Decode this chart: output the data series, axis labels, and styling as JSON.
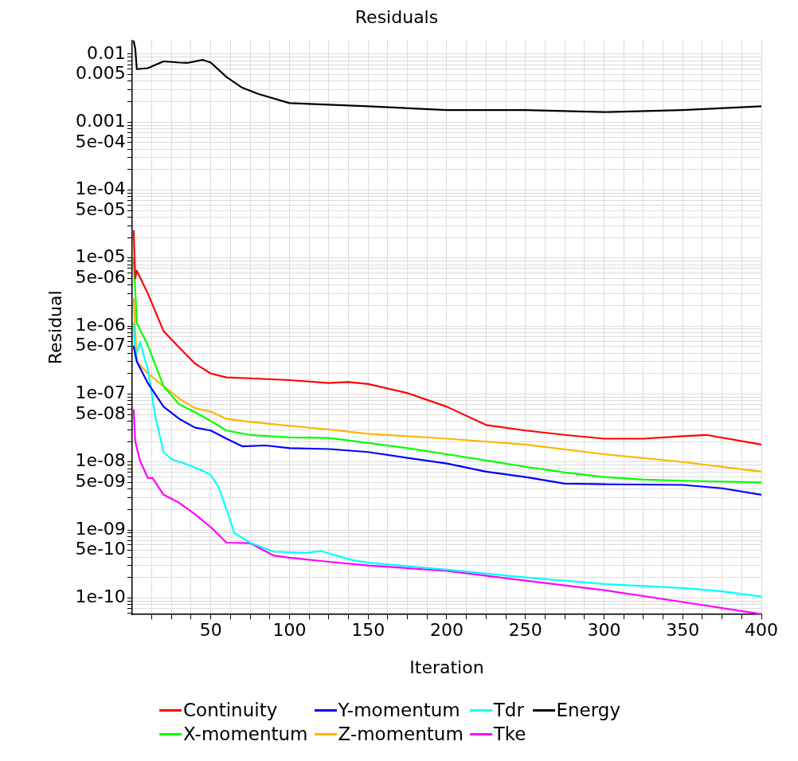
{
  "chart_data": {
    "type": "line",
    "title": "Residuals",
    "xlabel": "Iteration",
    "ylabel": "Residual",
    "log": "y",
    "grid": true,
    "legend": "bottom",
    "marker": "none",
    "line_style": "solid",
    "xlim": [
      0,
      400
    ],
    "xticks": [
      {
        "value": 12.5,
        "label": null
      },
      {
        "value": 25,
        "label": null
      },
      {
        "value": 37.5,
        "label": null
      },
      50,
      {
        "value": 62.5,
        "label": null
      },
      {
        "value": 75,
        "label": null
      },
      {
        "value": 87.5,
        "label": null
      },
      100,
      {
        "value": 112.5,
        "label": null
      },
      {
        "value": 125,
        "label": null
      },
      {
        "value": 137.5,
        "label": null
      },
      150,
      {
        "value": 162.5,
        "label": null
      },
      {
        "value": 175,
        "label": null
      },
      {
        "value": 187.5,
        "label": null
      },
      200,
      {
        "value": 212.5,
        "label": null
      },
      {
        "value": 225,
        "label": null
      },
      {
        "value": 237.5,
        "label": null
      },
      250,
      {
        "value": 262.5,
        "label": null
      },
      {
        "value": 275,
        "label": null
      },
      {
        "value": 287.5,
        "label": null
      },
      300,
      {
        "value": 312.5,
        "label": null
      },
      {
        "value": 325,
        "label": null
      },
      {
        "value": 337.5,
        "label": null
      },
      350,
      {
        "value": 362.5,
        "label": null
      },
      {
        "value": 375,
        "label": null
      },
      {
        "value": 387.5,
        "label": null
      },
      400
    ],
    "ylim": [
      5.7e-11,
      0.016
    ],
    "yticks": [
      {
        "value": 6e-11,
        "label": null
      },
      {
        "value": 7e-11,
        "label": null
      },
      {
        "value": 8e-11,
        "label": null
      },
      {
        "value": 9e-11,
        "label": null
      },
      {
        "value": 1e-10,
        "label": "1e-10"
      },
      {
        "value": 2e-10,
        "label": null
      },
      {
        "value": 3e-10,
        "label": null
      },
      {
        "value": 4e-10,
        "label": null
      },
      {
        "value": 5e-10,
        "label": "5e-10"
      },
      {
        "value": 6e-10,
        "label": null
      },
      {
        "value": 7e-10,
        "label": null
      },
      {
        "value": 8e-10,
        "label": null
      },
      {
        "value": 9e-10,
        "label": null
      },
      {
        "value": 1e-09,
        "label": "1e-09"
      },
      {
        "value": 2e-09,
        "label": null
      },
      {
        "value": 3e-09,
        "label": null
      },
      {
        "value": 4e-09,
        "label": null
      },
      {
        "value": 5e-09,
        "label": "5e-09"
      },
      {
        "value": 6e-09,
        "label": null
      },
      {
        "value": 7e-09,
        "label": null
      },
      {
        "value": 8e-09,
        "label": null
      },
      {
        "value": 9e-09,
        "label": null
      },
      {
        "value": 1e-08,
        "label": "1e-08"
      },
      {
        "value": 2e-08,
        "label": null
      },
      {
        "value": 3e-08,
        "label": null
      },
      {
        "value": 4e-08,
        "label": null
      },
      {
        "value": 5e-08,
        "label": "5e-08"
      },
      {
        "value": 6e-08,
        "label": null
      },
      {
        "value": 7e-08,
        "label": null
      },
      {
        "value": 8e-08,
        "label": null
      },
      {
        "value": 9e-08,
        "label": null
      },
      {
        "value": 1e-07,
        "label": "1e-07"
      },
      {
        "value": 2e-07,
        "label": null
      },
      {
        "value": 3e-07,
        "label": null
      },
      {
        "value": 4e-07,
        "label": null
      },
      {
        "value": 5e-07,
        "label": "5e-07"
      },
      {
        "value": 6e-07,
        "label": null
      },
      {
        "value": 7e-07,
        "label": null
      },
      {
        "value": 8e-07,
        "label": null
      },
      {
        "value": 9e-07,
        "label": null
      },
      {
        "value": 1e-06,
        "label": "1e-06"
      },
      {
        "value": 2e-06,
        "label": null
      },
      {
        "value": 3e-06,
        "label": null
      },
      {
        "value": 4e-06,
        "label": null
      },
      {
        "value": 5e-06,
        "label": "5e-06"
      },
      {
        "value": 6e-06,
        "label": null
      },
      {
        "value": 7e-06,
        "label": null
      },
      {
        "value": 8e-06,
        "label": null
      },
      {
        "value": 9e-06,
        "label": null
      },
      {
        "value": 1e-05,
        "label": "1e-05"
      },
      {
        "value": 2e-05,
        "label": null
      },
      {
        "value": 3e-05,
        "label": null
      },
      {
        "value": 4e-05,
        "label": null
      },
      {
        "value": 5e-05,
        "label": "5e-05"
      },
      {
        "value": 6e-05,
        "label": null
      },
      {
        "value": 7e-05,
        "label": null
      },
      {
        "value": 8e-05,
        "label": null
      },
      {
        "value": 9e-05,
        "label": null
      },
      {
        "value": 0.0001,
        "label": "1e-04"
      },
      {
        "value": 0.0002,
        "label": null
      },
      {
        "value": 0.0003,
        "label": null
      },
      {
        "value": 0.0004,
        "label": null
      },
      {
        "value": 0.0005,
        "label": "5e-04"
      },
      {
        "value": 0.0006,
        "label": null
      },
      {
        "value": 0.0007,
        "label": null
      },
      {
        "value": 0.0008,
        "label": null
      },
      {
        "value": 0.0009,
        "label": null
      },
      0.001,
      {
        "value": 0.002,
        "label": null
      },
      {
        "value": 0.003,
        "label": null
      },
      {
        "value": 0.004,
        "label": null
      },
      0.005,
      {
        "value": 0.006,
        "label": null
      },
      {
        "value": 0.007,
        "label": null
      },
      {
        "value": 0.008,
        "label": null
      },
      {
        "value": 0.009,
        "label": null
      },
      0.01
    ],
    "series": [
      {
        "name": "Continuity",
        "color": "#ff0000",
        "x": [
          1,
          2,
          3,
          10,
          20,
          30,
          40,
          50,
          60,
          75,
          100,
          125,
          137,
          150,
          175,
          200,
          225,
          250,
          275,
          300,
          325,
          350,
          365,
          400
        ],
        "values": [
          2.5e-05,
          5e-06,
          6.5e-06,
          3e-06,
          8.4e-07,
          4.8e-07,
          2.8e-07,
          2e-07,
          1.75e-07,
          1.7e-07,
          1.6e-07,
          1.45e-07,
          1.5e-07,
          1.4e-07,
          1.03e-07,
          6.5e-08,
          3.5e-08,
          2.9e-08,
          2.5e-08,
          2.2e-08,
          2.2e-08,
          2.4e-08,
          2.5e-08,
          1.8e-08
        ]
      },
      {
        "name": "Y-momentum",
        "color": "#0000ff",
        "x": [
          1,
          3,
          10,
          20,
          30,
          40,
          50,
          60,
          70,
          85,
          100,
          125,
          150,
          175,
          200,
          225,
          250,
          275,
          300,
          350,
          375,
          400
        ],
        "values": [
          5e-07,
          3e-07,
          1.45e-07,
          6.5e-08,
          4.3e-08,
          3.2e-08,
          2.9e-08,
          2.2e-08,
          1.7e-08,
          1.75e-08,
          1.6e-08,
          1.55e-08,
          1.4e-08,
          1.15e-08,
          9.5e-09,
          7.2e-09,
          6e-09,
          4.8e-09,
          4.7e-09,
          4.6e-09,
          4.1e-09,
          3.3e-09
        ]
      },
      {
        "name": "Tdr",
        "color": "#00ffff",
        "x": [
          1,
          2,
          5,
          10,
          15,
          20,
          25,
          35,
          45,
          50,
          55,
          60,
          65,
          75,
          90,
          110,
          120,
          140,
          150,
          200,
          250,
          300,
          350,
          375,
          400
        ],
        "values": [
          1.1e-06,
          3.5e-07,
          5.8e-07,
          2.3e-07,
          4.4e-08,
          1.4e-08,
          1.1e-08,
          9.2e-09,
          7.4e-09,
          6.4e-09,
          4.3e-09,
          2e-09,
          9e-10,
          6.5e-10,
          4.8e-10,
          4.6e-10,
          4.9e-10,
          3.6e-10,
          3.3e-10,
          2.6e-10,
          2e-10,
          1.6e-10,
          1.4e-10,
          1.25e-10,
          1.05e-10
        ]
      },
      {
        "name": "Energy",
        "color": "#000000",
        "x": [
          1,
          2,
          3,
          10,
          20,
          30,
          35,
          45,
          50,
          60,
          70,
          80,
          100,
          150,
          200,
          250,
          300,
          350,
          400
        ],
        "values": [
          0.0155,
          0.012,
          0.006,
          0.0062,
          0.0078,
          0.0075,
          0.0074,
          0.0082,
          0.0075,
          0.0046,
          0.0032,
          0.0026,
          0.0019,
          0.0017,
          0.0015,
          0.0015,
          0.0014,
          0.0015,
          0.0017
        ]
      },
      {
        "name": "X-momentum",
        "color": "#00ff00",
        "x": [
          1,
          3,
          10,
          20,
          30,
          40,
          50,
          60,
          75,
          100,
          125,
          150,
          175,
          200,
          225,
          250,
          275,
          300,
          325,
          350,
          400
        ],
        "values": [
          1e-05,
          1.1e-06,
          5.2e-07,
          1.3e-07,
          7e-08,
          5.4e-08,
          4e-08,
          2.9e-08,
          2.5e-08,
          2.3e-08,
          2.25e-08,
          1.9e-08,
          1.6e-08,
          1.3e-08,
          1.05e-08,
          8.5e-09,
          7e-09,
          6e-09,
          5.5e-09,
          5.3e-09,
          5e-09
        ]
      },
      {
        "name": "Z-momentum",
        "color": "#ffb400",
        "x": [
          1,
          3,
          10,
          20,
          30,
          40,
          50,
          60,
          75,
          100,
          125,
          150,
          200,
          250,
          300,
          350,
          400
        ],
        "values": [
          2.5e-06,
          3e-07,
          2e-07,
          1.3e-07,
          8.5e-08,
          6.2e-08,
          5.5e-08,
          4.3e-08,
          3.9e-08,
          3.4e-08,
          3e-08,
          2.6e-08,
          2.2e-08,
          1.8e-08,
          1.3e-08,
          1e-08,
          7.2e-09
        ]
      },
      {
        "name": "Tke",
        "color": "#ff00ff",
        "x": [
          1,
          2,
          5,
          10,
          13,
          20,
          30,
          40,
          50,
          60,
          75,
          90,
          100,
          125,
          150,
          200,
          250,
          300,
          350,
          400
        ],
        "values": [
          5.8e-08,
          2e-08,
          1.05e-08,
          5.8e-09,
          5.8e-09,
          3.3e-09,
          2.5e-09,
          1.7e-09,
          1.1e-09,
          6.5e-10,
          6.4e-10,
          4.2e-10,
          3.9e-10,
          3.4e-10,
          3e-10,
          2.5e-10,
          1.8e-10,
          1.3e-10,
          8.7e-11,
          5.8e-11
        ]
      }
    ]
  }
}
